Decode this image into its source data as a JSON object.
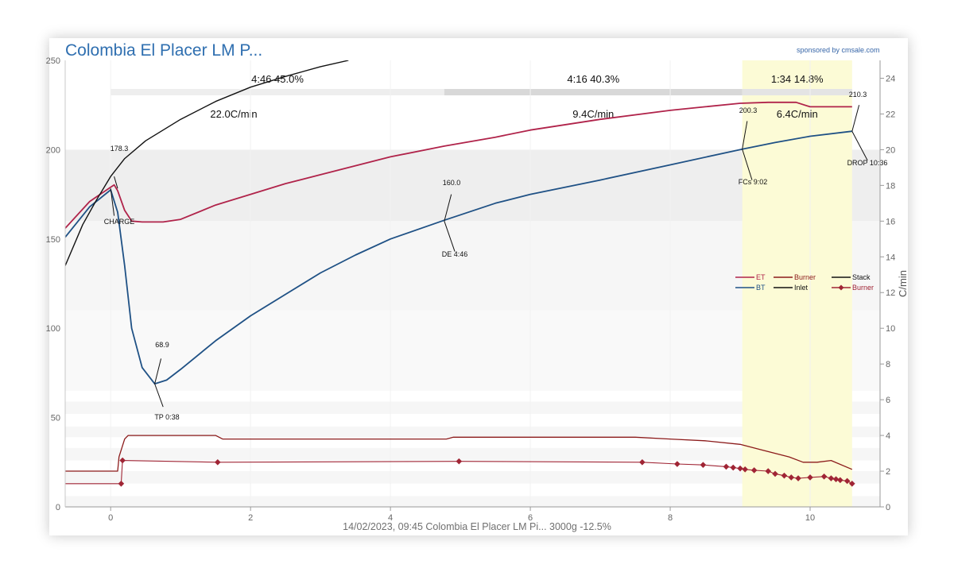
{
  "header": {
    "title": "Colombia El Placer LM P...",
    "sponsor": "sponsored by cmsale.com"
  },
  "footer": {
    "text": "14/02/2023, 09:45 Colombia El Placer LM Pi...   3000g   -12.5%"
  },
  "colors": {
    "et": "#b0234a",
    "bt": "#1f5185",
    "inlet": "#111111",
    "burner": "#8b1a1a",
    "burner_marker": "#a02535",
    "phase_highlight": "#fcfbd6",
    "grid_band": "#efefef"
  },
  "chart_data": {
    "type": "line",
    "x_axis": {
      "range": [
        -0.65,
        11.0
      ],
      "ticks": [
        "0",
        "2",
        "4",
        "6",
        "8",
        "10"
      ]
    },
    "y_left": {
      "range": [
        0,
        250
      ],
      "ticks": [
        "0",
        "50",
        "100",
        "150",
        "200",
        "250"
      ]
    },
    "y_right": {
      "label": "C/min",
      "range": [
        0,
        25
      ],
      "ticks": [
        "0",
        "2",
        "4",
        "6",
        "8",
        "10",
        "12",
        "14",
        "16",
        "18",
        "20",
        "22",
        "24"
      ]
    },
    "phases": [
      {
        "label": "4:46  45.0%",
        "ror": "22.0C/min",
        "x_start": 0,
        "x_end": 4.77
      },
      {
        "label": "4:16  40.3%",
        "ror": "9.4C/min",
        "x_start": 4.77,
        "x_end": 9.03
      },
      {
        "label": "1:34  14.8%",
        "ror": "6.4C/min",
        "x_start": 9.03,
        "x_end": 10.6
      }
    ],
    "events": [
      {
        "name": "CHARGE",
        "value": "178.3",
        "x": 0.0,
        "y": 178.3
      },
      {
        "name": "TP 0:38",
        "value": "68.9",
        "x": 0.63,
        "y": 68.9
      },
      {
        "name": "DE 4:46",
        "value": "160.0",
        "x": 4.77,
        "y": 160.0
      },
      {
        "name": "FCs 9:02",
        "value": "200.3",
        "x": 9.03,
        "y": 200.3
      },
      {
        "name": "DROP 10:36",
        "value": "210.3",
        "x": 10.6,
        "y": 210.3
      }
    ],
    "legend": {
      "placement": "right",
      "entries": [
        {
          "label": "ET",
          "color": "#b0234a",
          "style": "line"
        },
        {
          "label": "Burner",
          "color": "#8b1a1a",
          "style": "line"
        },
        {
          "label": "Stack",
          "color": "#111111",
          "style": "line"
        },
        {
          "label": "BT",
          "color": "#1f5185",
          "style": "line"
        },
        {
          "label": "Inlet",
          "color": "#111111",
          "style": "line"
        },
        {
          "label": "Burner",
          "color": "#a02535",
          "style": "marker"
        }
      ]
    },
    "series": [
      {
        "name": "BT",
        "axis": "left",
        "x": [
          -0.65,
          -0.3,
          0.0,
          0.1,
          0.2,
          0.3,
          0.45,
          0.63,
          0.8,
          1.0,
          1.5,
          2.0,
          2.5,
          3.0,
          3.5,
          4.0,
          4.77,
          5.5,
          6.0,
          7.0,
          8.0,
          9.03,
          9.5,
          10.0,
          10.6
        ],
        "y": [
          151,
          168,
          177.5,
          165,
          135,
          100,
          78,
          68.9,
          71,
          77,
          93,
          107,
          119,
          131,
          141,
          150,
          160.5,
          170,
          175,
          183,
          191.5,
          200.3,
          204,
          207.5,
          210.3
        ]
      },
      {
        "name": "ET",
        "axis": "left",
        "x": [
          -0.65,
          -0.3,
          0.0,
          0.05,
          0.1,
          0.2,
          0.3,
          0.45,
          0.75,
          1.0,
          1.5,
          2.0,
          2.5,
          3.0,
          3.5,
          4.0,
          4.77,
          5.5,
          6.0,
          7.0,
          8.0,
          8.5,
          9.0,
          9.4,
          9.8,
          10.0,
          10.6
        ],
        "y": [
          156,
          171,
          179,
          180.3,
          177,
          166,
          160,
          159.5,
          159.5,
          161,
          169,
          175,
          181,
          186,
          191,
          196,
          202,
          207,
          211,
          217,
          222,
          224,
          226,
          226.5,
          226.5,
          224,
          224
        ]
      },
      {
        "name": "Inlet",
        "axis": "left",
        "x": [
          -0.65,
          -0.4,
          -0.2,
          0.0,
          0.2,
          0.5,
          1.0,
          1.5,
          2.0,
          2.5,
          3.0,
          3.4
        ],
        "y": [
          135,
          158,
          172,
          185,
          195,
          205,
          217,
          227,
          235,
          241,
          246.5,
          250
        ]
      },
      {
        "name": "Burner",
        "axis": "left",
        "x": [
          -0.65,
          0.1,
          0.12,
          0.2,
          0.25,
          1.5,
          1.6,
          4.8,
          4.9,
          7.5,
          8.0,
          8.5,
          9.0,
          9.3,
          9.7,
          9.9,
          10.1,
          10.3,
          10.6
        ],
        "y": [
          20,
          20,
          28,
          38,
          40,
          40,
          38,
          38,
          39,
          39,
          38,
          37,
          35,
          32,
          28,
          25,
          25,
          26,
          21
        ]
      },
      {
        "name": "Burner (setting)",
        "axis": "left",
        "markers": true,
        "x": [
          -0.65,
          0.15,
          0.17,
          1.53,
          4.98,
          7.6,
          8.1,
          8.47,
          8.8,
          8.9,
          9.0,
          9.07,
          9.2,
          9.4,
          9.5,
          9.63,
          9.73,
          9.83,
          10.0,
          10.2,
          10.3,
          10.37,
          10.43,
          10.53,
          10.6
        ],
        "y": [
          13,
          13,
          26,
          25,
          25.5,
          25,
          24,
          23.5,
          22.5,
          22,
          21.5,
          21,
          20.5,
          20,
          18.5,
          17.5,
          16.5,
          16,
          16.5,
          17,
          16,
          15.5,
          15,
          14.5,
          13
        ]
      }
    ]
  }
}
